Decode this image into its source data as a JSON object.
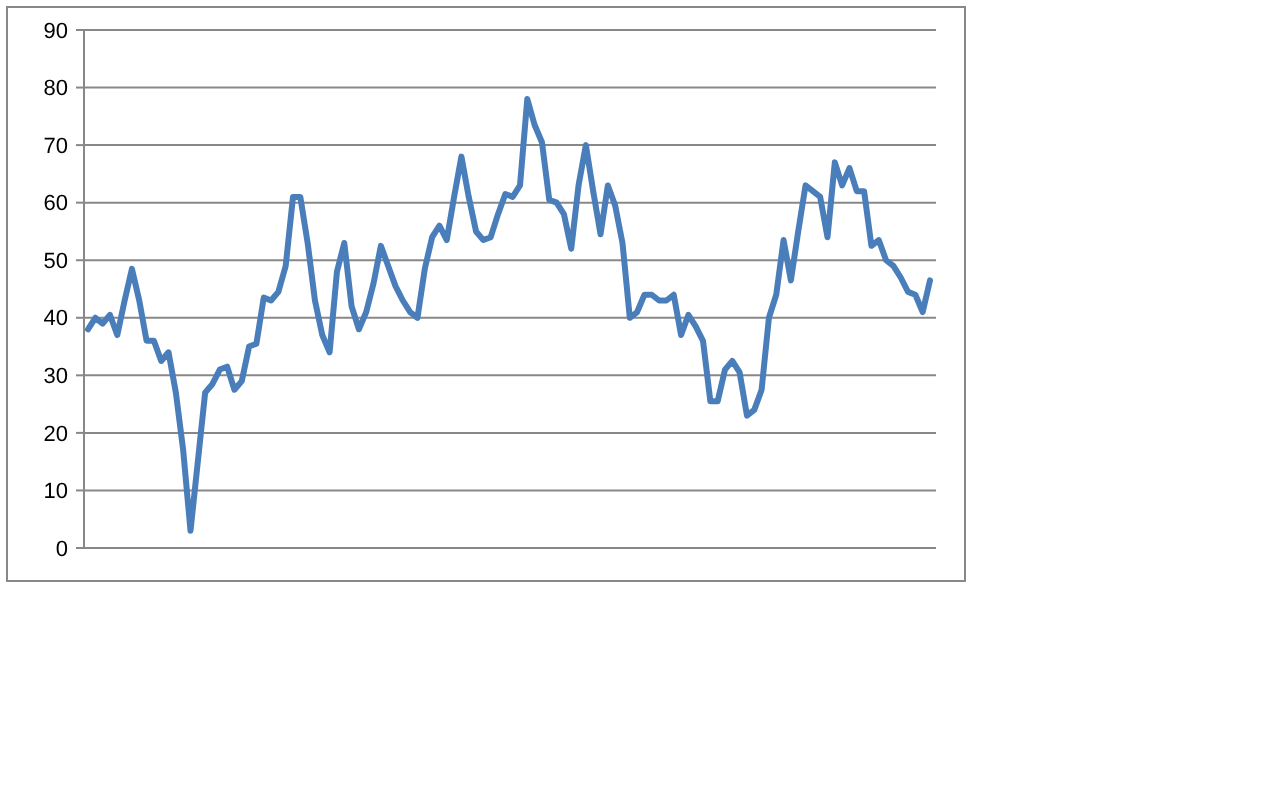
{
  "chart_data": {
    "type": "line",
    "categories": [
      null,
      null,
      null,
      null,
      null,
      null,
      null,
      null,
      null,
      null,
      null,
      null,
      null,
      null,
      null,
      null,
      null,
      null,
      null,
      null,
      null,
      null,
      null,
      null,
      null,
      null,
      null,
      null,
      null,
      null,
      null,
      null,
      null,
      null,
      null,
      null,
      null,
      null,
      null,
      null,
      null,
      null,
      null,
      null,
      null,
      null,
      null,
      null,
      null,
      null,
      null,
      null,
      null,
      null,
      null,
      null,
      null,
      null,
      null,
      null,
      null,
      null,
      null,
      null,
      null,
      null,
      null,
      null,
      null,
      null,
      null,
      null,
      null,
      null,
      null,
      null,
      null,
      null,
      null,
      null,
      null,
      null,
      null,
      null,
      null,
      null,
      null,
      null,
      null,
      null,
      null,
      null,
      null,
      null,
      null,
      null,
      null,
      null,
      null,
      null,
      null,
      null,
      null,
      null,
      null,
      null,
      null,
      null,
      null,
      null,
      null,
      null,
      null,
      null,
      null,
      null
    ],
    "series": [
      {
        "color": "#4a7ebb",
        "values": [
          38,
          40,
          39,
          40.5,
          37,
          43,
          48.5,
          43,
          36,
          36,
          32.5,
          34,
          27,
          17,
          3,
          15,
          27,
          28.5,
          31,
          31.5,
          27.5,
          29,
          35,
          35.5,
          43.5,
          43,
          44.5,
          49,
          61,
          61,
          53,
          43,
          37,
          34,
          48,
          53,
          42,
          38,
          41,
          46,
          52.5,
          49,
          45.5,
          43,
          41,
          40,
          48.5,
          54,
          56,
          53.5,
          61,
          68,
          61,
          55,
          53.5,
          54,
          58,
          61.5,
          61,
          63,
          78,
          73.5,
          70.5,
          60.5,
          60,
          58,
          52,
          63,
          70,
          62,
          54.5,
          63,
          59.5,
          53,
          40,
          41,
          44,
          44,
          43,
          43,
          44,
          37,
          40.5,
          38.5,
          36,
          25.5,
          25.5,
          31,
          32.5,
          30.5,
          23,
          24,
          27.5,
          40,
          44,
          53.5,
          46.5,
          55,
          63,
          62,
          61,
          54,
          67,
          63,
          66,
          62,
          62,
          52.5,
          53.5,
          50,
          49,
          47,
          44.5,
          44,
          41,
          46.5
        ]
      }
    ],
    "ylim": [
      0,
      90
    ],
    "yticks": [
      0,
      10,
      20,
      30,
      40,
      50,
      60,
      70,
      80,
      90
    ],
    "grid": "y",
    "marker": "none",
    "line_style": "solid"
  }
}
